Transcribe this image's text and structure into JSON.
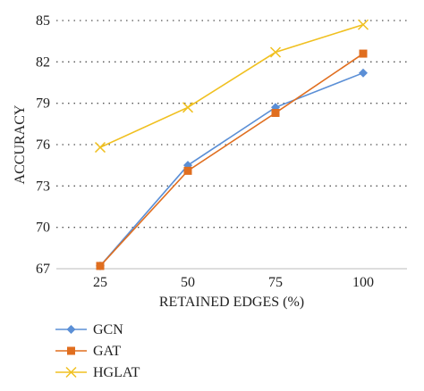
{
  "chart_data": {
    "type": "line",
    "categories": [
      "25",
      "50",
      "75",
      "100"
    ],
    "xlabel": "RETAINED EDGES (%)",
    "ylabel": "ACCURACY",
    "ylim": [
      67,
      85
    ],
    "yticks": [
      "67",
      "70",
      "73",
      "76",
      "79",
      "82",
      "85"
    ],
    "grid": "horizontal dotted",
    "legend_position": "bottom-left",
    "series": [
      {
        "name": "GCN",
        "values": [
          67.2,
          74.5,
          78.7,
          81.2
        ],
        "color": "#5b8fd6",
        "marker": "diamond"
      },
      {
        "name": "GAT",
        "values": [
          67.2,
          74.1,
          78.3,
          82.6
        ],
        "color": "#e06e1f",
        "marker": "square"
      },
      {
        "name": "HGLAT",
        "values": [
          75.8,
          78.7,
          82.7,
          84.7
        ],
        "color": "#f0c020",
        "marker": "x"
      }
    ]
  }
}
